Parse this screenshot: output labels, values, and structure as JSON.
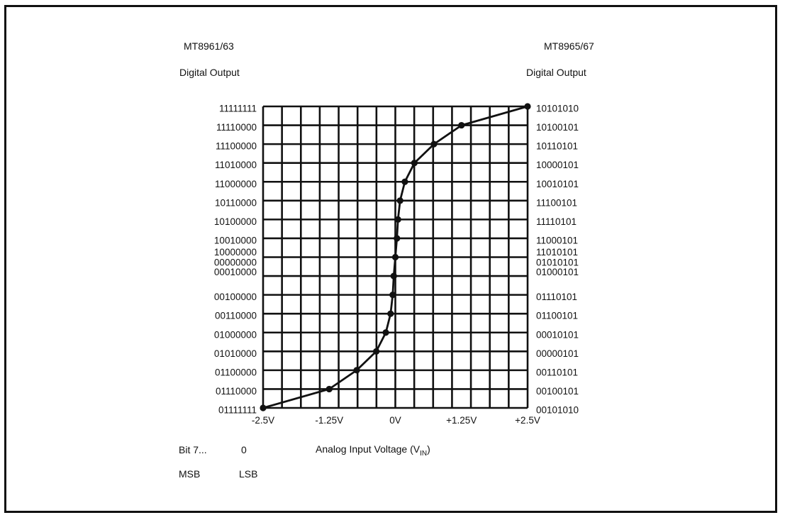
{
  "left_header": {
    "model": "MT8961/63",
    "title": "Digital Output"
  },
  "right_header": {
    "model": "MT8965/67",
    "title": "Digital Output"
  },
  "x_axis_label": {
    "main": "Analog Input Voltage (V",
    "sub": "IN",
    "close": ")"
  },
  "bit_legend": {
    "bits": "Bit 7...",
    "zero": "0",
    "msb": "MSB",
    "lsb": "LSB"
  },
  "chart_data": {
    "type": "line",
    "x": {
      "tick_labels": [
        "-2.5V",
        "-1.25V",
        "0V",
        "+1.25V",
        "+2.5V"
      ],
      "tick_values": [
        -2.5,
        -1.25,
        0,
        1.25,
        2.5
      ],
      "range": [
        -2.5,
        2.5
      ]
    },
    "y_left_labels": [
      "11111111",
      "11110000",
      "11100000",
      "11010000",
      "11000000",
      "10110000",
      "10100000",
      "10010000",
      "10000000",
      "00000000",
      "00010000",
      "00100000",
      "00110000",
      "01000000",
      "01010000",
      "01100000",
      "01110000",
      "01111111"
    ],
    "y_right_labels": [
      "10101010",
      "10100101",
      "10110101",
      "10000101",
      "10010101",
      "11100101",
      "11110101",
      "11000101",
      "11010101",
      "01010101",
      "01000101",
      "01110101",
      "01100101",
      "00010101",
      "00000101",
      "00110101",
      "00100101",
      "00101010"
    ],
    "y_range": [
      0,
      16
    ],
    "grid": true,
    "series": [
      {
        "points": [
          [
            -2.5,
            0
          ],
          [
            -1.25,
            1
          ],
          [
            -0.73,
            2
          ],
          [
            -0.36,
            3
          ],
          [
            -0.18,
            4
          ],
          [
            -0.09,
            5
          ],
          [
            -0.05,
            6
          ],
          [
            -0.03,
            7
          ],
          [
            0,
            8
          ],
          [
            0.03,
            9
          ],
          [
            0.05,
            10
          ],
          [
            0.09,
            11
          ],
          [
            0.18,
            12
          ],
          [
            0.36,
            13
          ],
          [
            0.73,
            14
          ],
          [
            1.25,
            15
          ],
          [
            2.5,
            16
          ]
        ]
      }
    ]
  }
}
